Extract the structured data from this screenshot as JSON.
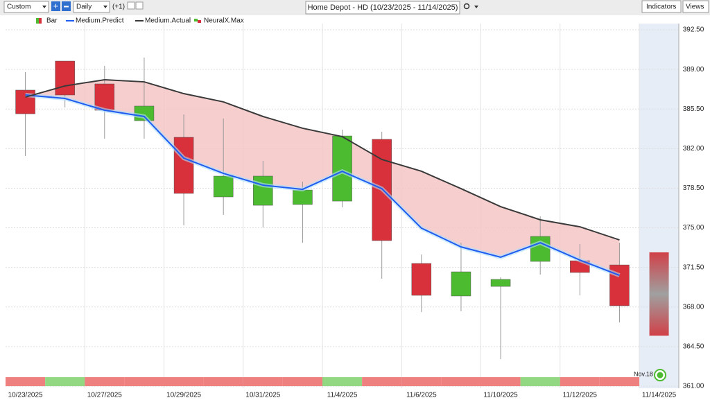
{
  "toolbar": {
    "period": "Custom",
    "interval": "Daily",
    "offset": "(+1)",
    "title": "Home Depot - HD (10/23/2025 - 11/14/2025)",
    "indicators": "Indicators",
    "views": "Views"
  },
  "chart_data": {
    "type": "candlestick",
    "categories": [
      "10/23/2025",
      null,
      "10/27/2025",
      null,
      "10/29/2025",
      null,
      "10/31/2025",
      null,
      "11/4/2025",
      null,
      "11/6/2025",
      null,
      "11/10/2025",
      null,
      "11/12/2025",
      null,
      "11/14/2025"
    ],
    "ylim": [
      361,
      392.5
    ],
    "yticks": [
      {
        "value": 361,
        "label": "361.00"
      },
      {
        "value": 364.5,
        "label": "364.50"
      },
      {
        "value": 368,
        "label": "368.00"
      },
      {
        "value": 371.5,
        "label": "371.50"
      },
      {
        "value": 375,
        "label": "375.00"
      },
      {
        "value": 378.5,
        "label": "378.50"
      },
      {
        "value": 382,
        "label": "382.00"
      },
      {
        "value": 385.5,
        "label": "385.50"
      },
      {
        "value": 389,
        "label": "389.00"
      },
      {
        "value": 392.5,
        "label": "392.50"
      }
    ],
    "grid": true,
    "candles": {
      "name": "Bar",
      "up_color": "#4cbb30",
      "down_color": "#d8313b",
      "open": [
        387.17,
        389.74,
        387.72,
        384.47,
        383.0,
        377.73,
        376.99,
        377.06,
        377.36,
        382.82,
        371.85,
        368.97,
        369.82,
        372.03,
        372.09,
        371.72,
        null
      ],
      "high": [
        388.76,
        389.74,
        389.31,
        390.05,
        385.02,
        384.66,
        380.92,
        379.08,
        383.67,
        383.49,
        372.64,
        373.68,
        370.62,
        376.01,
        373.56,
        373.68,
        null
      ],
      "low": [
        381.35,
        385.64,
        382.88,
        382.88,
        375.22,
        376.14,
        375.03,
        373.68,
        376.81,
        370.5,
        367.55,
        367.62,
        363.39,
        370.86,
        369.03,
        366.64,
        null
      ],
      "close": [
        385.08,
        386.74,
        385.39,
        385.76,
        378.04,
        379.57,
        379.57,
        378.34,
        383.12,
        373.87,
        369.03,
        371.11,
        370.44,
        374.24,
        371.05,
        368.11,
        null
      ]
    },
    "series": [
      {
        "name": "Medium.Predict",
        "color": "#1f5cf0",
        "values": [
          386.74,
          386.43,
          385.39,
          384.84,
          381.16,
          379.81,
          378.77,
          378.4,
          379.99,
          378.46,
          374.97,
          373.31,
          372.4,
          373.68,
          372.15,
          370.8,
          null
        ]
      },
      {
        "name": "Medium.Actual",
        "color": "#3a3a3a",
        "values": [
          386.55,
          387.54,
          388.09,
          387.9,
          386.86,
          386.13,
          384.84,
          383.8,
          383.06,
          381.04,
          380.0,
          378.46,
          376.87,
          375.71,
          375.09,
          373.93,
          null
        ]
      }
    ],
    "band_fill": "#f5c6c6",
    "forecast_range": [
      365.47,
      372.83
    ],
    "strip": {
      "name": "NeuralX.Max",
      "colors": [
        "#ee8080",
        "#92d882",
        "#ee8080",
        "#ee8080",
        "#ee8080",
        "#ee8080",
        "#ee8080",
        "#ee8080",
        "#92d882",
        "#ee8080",
        "#ee8080",
        "#ee8080",
        "#ee8080",
        "#92d882",
        "#ee8080",
        "#ee8080"
      ]
    },
    "annotation": "Nov.18"
  }
}
